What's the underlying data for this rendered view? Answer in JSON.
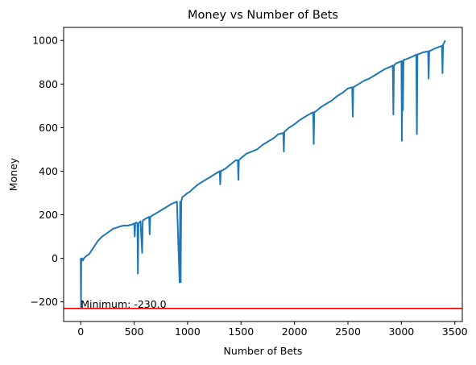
{
  "chart_data": {
    "type": "line",
    "title": "Money vs Number of Bets",
    "xlabel": "Number of Bets",
    "ylabel": "Money",
    "xlim": [
      -160,
      3570
    ],
    "ylim": [
      -290,
      1060
    ],
    "x_ticks": [
      0,
      500,
      1000,
      1500,
      2000,
      2500,
      3000,
      3500
    ],
    "y_ticks": [
      -200,
      0,
      200,
      400,
      600,
      800,
      1000
    ],
    "grid": false,
    "legend": "none",
    "series": [
      {
        "color": "#1f77b4",
        "x": [
          0,
          3,
          5,
          8,
          12,
          20,
          30,
          50,
          80,
          120,
          160,
          200,
          260,
          300,
          360,
          400,
          440,
          480,
          500,
          505,
          510,
          520,
          530,
          535,
          540,
          550,
          560,
          575,
          580,
          585,
          600,
          620,
          640,
          645,
          650,
          680,
          700,
          750,
          800,
          850,
          900,
          925,
          930,
          935,
          940,
          950,
          1000,
          1020,
          1050,
          1100,
          1150,
          1200,
          1250,
          1300,
          1305,
          1310,
          1350,
          1400,
          1450,
          1470,
          1475,
          1480,
          1500,
          1550,
          1600,
          1650,
          1700,
          1750,
          1800,
          1850,
          1895,
          1900,
          1905,
          1950,
          2000,
          2050,
          2100,
          2150,
          2175,
          2180,
          2185,
          2200,
          2250,
          2300,
          2350,
          2400,
          2450,
          2500,
          2540,
          2545,
          2550,
          2600,
          2650,
          2700,
          2750,
          2800,
          2850,
          2900,
          2920,
          2925,
          2930,
          2950,
          3000,
          3005,
          3010,
          3015,
          3020,
          3050,
          3100,
          3140,
          3145,
          3150,
          3200,
          3250,
          3255,
          3260,
          3300,
          3350,
          3380,
          3385,
          3390,
          3410
        ],
        "y": [
          0,
          -230,
          0,
          -10,
          0,
          -10,
          0,
          10,
          20,
          50,
          80,
          100,
          120,
          135,
          145,
          150,
          150,
          155,
          160,
          100,
          160,
          165,
          160,
          -70,
          160,
          165,
          170,
          25,
          170,
          175,
          180,
          185,
          190,
          110,
          190,
          200,
          205,
          220,
          235,
          250,
          260,
          -110,
          260,
          -110,
          260,
          280,
          300,
          305,
          320,
          340,
          355,
          370,
          385,
          400,
          340,
          400,
          410,
          430,
          450,
          450,
          360,
          450,
          460,
          480,
          490,
          500,
          520,
          535,
          550,
          570,
          575,
          490,
          580,
          600,
          615,
          635,
          650,
          665,
          670,
          525,
          670,
          675,
          695,
          710,
          725,
          745,
          760,
          780,
          785,
          650,
          785,
          800,
          815,
          825,
          840,
          855,
          870,
          880,
          885,
          660,
          885,
          895,
          905,
          540,
          905,
          680,
          910,
          915,
          925,
          935,
          570,
          935,
          945,
          950,
          825,
          950,
          960,
          970,
          975,
          850,
          980,
          1000
        ]
      }
    ],
    "hline": {
      "y": -230,
      "color": "#ff0000"
    },
    "annotation": {
      "text": "Minimum: -230.0",
      "x": 0,
      "y": -230
    }
  }
}
